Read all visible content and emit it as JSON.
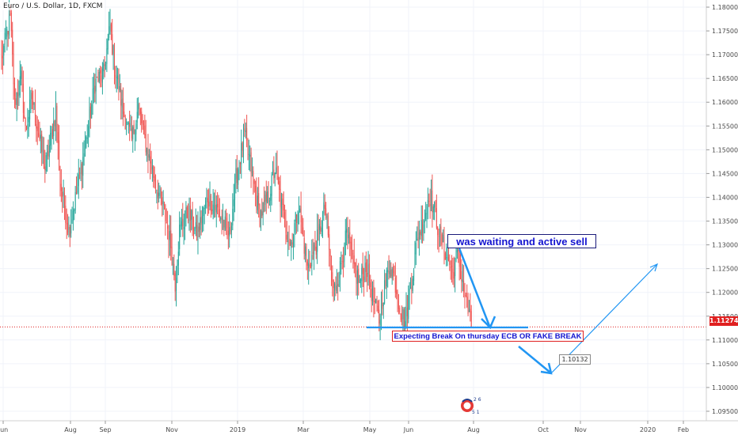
{
  "header": {
    "symbol_title": "Euro / U.S. Dollar, 1D, FXCM"
  },
  "annotations": {
    "sell_note": "was waiting and active sell",
    "break_note": "Expecting Break On thursday ECB OR FAKE BREAK",
    "price_marker": "1.10132",
    "logo_text_top": "2 6",
    "logo_text_bottom": "5 1"
  },
  "last_price": "1.11274",
  "colors": {
    "up_candle": "#26a69a",
    "down_candle": "#ef5350",
    "last_price": "#e02020",
    "annotation_blue": "#2196f3",
    "text_blue": "#1414d0"
  },
  "chart_data": {
    "type": "candlestick",
    "title": "Euro / U.S. Dollar, 1D, FXCM",
    "x_axis_labels": [
      "Jun",
      "Aug",
      "Sep",
      "Nov",
      "2019",
      "Mar",
      "May",
      "Jun",
      "Aug",
      "Oct",
      "Nov",
      "2020",
      "Feb"
    ],
    "y_axis_labels": [
      "1.18000",
      "1.17500",
      "1.17000",
      "1.16500",
      "1.16000",
      "1.15500",
      "1.15000",
      "1.14500",
      "1.14000",
      "1.13500",
      "1.13000",
      "1.12500",
      "1.12000",
      "1.11500",
      "1.11000",
      "1.10500",
      "1.10000",
      "1.09500"
    ],
    "ylim": [
      1.093,
      1.1815
    ],
    "last_price": 1.11274,
    "key_prices": [
      [
        0,
        1.169
      ],
      [
        8,
        1.178
      ],
      [
        12,
        1.16
      ],
      [
        18,
        1.165
      ],
      [
        22,
        1.154
      ],
      [
        28,
        1.161
      ],
      [
        40,
        1.146
      ],
      [
        50,
        1.158
      ],
      [
        54,
        1.143
      ],
      [
        62,
        1.133
      ],
      [
        70,
        1.142
      ],
      [
        78,
        1.152
      ],
      [
        86,
        1.164
      ],
      [
        94,
        1.166
      ],
      [
        100,
        1.176
      ],
      [
        104,
        1.168
      ],
      [
        112,
        1.158
      ],
      [
        120,
        1.152
      ],
      [
        126,
        1.159
      ],
      [
        134,
        1.15
      ],
      [
        142,
        1.143
      ],
      [
        150,
        1.137
      ],
      [
        156,
        1.13
      ],
      [
        160,
        1.122
      ],
      [
        164,
        1.133
      ],
      [
        172,
        1.137
      ],
      [
        180,
        1.132
      ],
      [
        190,
        1.14
      ],
      [
        200,
        1.137
      ],
      [
        210,
        1.132
      ],
      [
        216,
        1.144
      ],
      [
        224,
        1.153
      ],
      [
        230,
        1.146
      ],
      [
        238,
        1.136
      ],
      [
        246,
        1.14
      ],
      [
        252,
        1.146
      ],
      [
        258,
        1.138
      ],
      [
        266,
        1.13
      ],
      [
        274,
        1.138
      ],
      [
        282,
        1.125
      ],
      [
        290,
        1.13
      ],
      [
        298,
        1.138
      ],
      [
        306,
        1.12
      ],
      [
        312,
        1.125
      ],
      [
        318,
        1.132
      ],
      [
        324,
        1.126
      ],
      [
        330,
        1.122
      ],
      [
        336,
        1.126
      ],
      [
        342,
        1.119
      ],
      [
        348,
        1.114
      ],
      [
        352,
        1.12
      ],
      [
        358,
        1.126
      ],
      [
        362,
        1.123
      ],
      [
        368,
        1.116
      ],
      [
        372,
        1.114
      ],
      [
        378,
        1.123
      ],
      [
        384,
        1.132
      ],
      [
        390,
        1.136
      ],
      [
        394,
        1.141
      ],
      [
        398,
        1.138
      ],
      [
        404,
        1.132
      ],
      [
        410,
        1.128
      ],
      [
        416,
        1.124
      ],
      [
        420,
        1.128
      ],
      [
        424,
        1.124
      ],
      [
        428,
        1.118
      ],
      [
        433,
        1.1127
      ]
    ],
    "annotations": [
      {
        "text": "was waiting and active sell",
        "kind": "label"
      },
      {
        "text": "Expecting Break On thursday ECB OR FAKE BREAK",
        "kind": "label"
      },
      {
        "text": "1.10132",
        "kind": "price-label"
      }
    ]
  }
}
